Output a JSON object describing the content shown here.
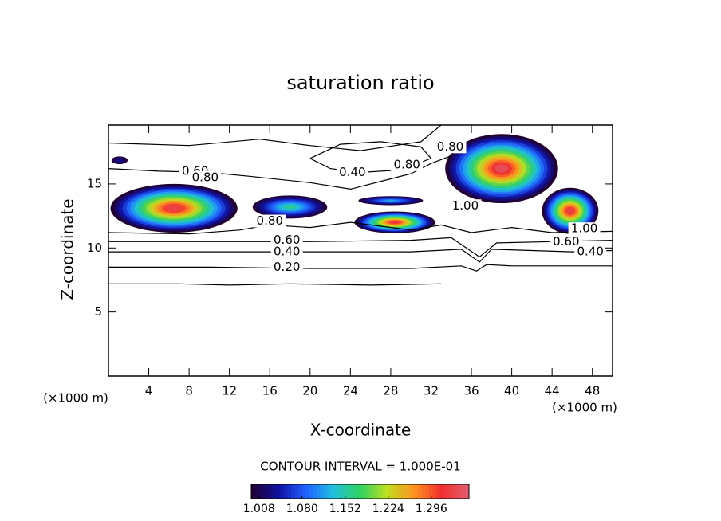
{
  "chart_data": {
    "type": "contour",
    "title": "saturation ratio",
    "xlabel": "X-coordinate",
    "ylabel": "Z-coordinate",
    "x_unit": "(×1000 m)",
    "y_unit": "(×1000 m)",
    "xlim": [
      0,
      50
    ],
    "ylim": [
      0,
      19.6
    ],
    "xticks": [
      4,
      8,
      12,
      16,
      20,
      24,
      28,
      32,
      36,
      40,
      44,
      48
    ],
    "yticks": [
      5,
      10,
      15
    ],
    "line_color": "#000000",
    "contours": [
      {
        "x": [
          0,
          10,
          20,
          30,
          35,
          36.5,
          37.5,
          40,
          45,
          50
        ],
        "y": [
          8.5,
          8.5,
          8.4,
          8.4,
          8.6,
          8.2,
          8.7,
          8.6,
          8.6,
          8.6
        ]
      },
      {
        "x": [
          0,
          10,
          20,
          30,
          35,
          36.8,
          38,
          42,
          46,
          50
        ],
        "y": [
          9.7,
          9.7,
          9.7,
          9.7,
          9.9,
          8.9,
          9.9,
          9.8,
          9.7,
          9.8
        ]
      },
      {
        "x": [
          0,
          10,
          20,
          30,
          34,
          36.8,
          38.5,
          44,
          50
        ],
        "y": [
          10.5,
          10.5,
          10.5,
          10.6,
          10.8,
          9.3,
          10.4,
          10.5,
          10.6
        ]
      },
      {
        "x": [
          0,
          8,
          13,
          16,
          20,
          24,
          30,
          33,
          36,
          40,
          44,
          50
        ],
        "y": [
          11.2,
          11.1,
          11.4,
          11.8,
          11.6,
          12.0,
          11.4,
          11.8,
          11.2,
          11.6,
          11.2,
          11.3
        ]
      },
      {
        "x": [
          0,
          5,
          10,
          14,
          20,
          24,
          28,
          30,
          32,
          34
        ],
        "y": [
          16.2,
          16.0,
          15.9,
          15.6,
          15.1,
          14.6,
          15.4,
          15.8,
          16.6,
          17.2
        ]
      },
      {
        "x": [
          20,
          22,
          25,
          29,
          32,
          31,
          27,
          23,
          20
        ],
        "y": [
          17.0,
          16.2,
          15.9,
          16.1,
          17.0,
          17.9,
          18.3,
          18.1,
          17.0
        ]
      },
      {
        "x": [
          0,
          8,
          15,
          20,
          25,
          31,
          33
        ],
        "y": [
          18.2,
          18.0,
          18.5,
          18.0,
          17.6,
          18.3,
          19.6
        ]
      },
      {
        "x": [
          0,
          7,
          12,
          18,
          26,
          33
        ],
        "y": [
          7.2,
          7.2,
          7.1,
          7.2,
          7.1,
          7.2
        ]
      }
    ],
    "contour_labels": [
      {
        "text": "0.60",
        "x": 8.6,
        "y": 16.0
      },
      {
        "text": "0.80",
        "x": 9.6,
        "y": 15.5
      },
      {
        "text": "0.40",
        "x": 24.2,
        "y": 15.9
      },
      {
        "text": "0.80",
        "x": 29.6,
        "y": 16.5
      },
      {
        "text": "0.80",
        "x": 33.9,
        "y": 17.9
      },
      {
        "text": "0.80",
        "x": 16.0,
        "y": 12.1
      },
      {
        "text": "0.60",
        "x": 17.7,
        "y": 10.6
      },
      {
        "text": "0.40",
        "x": 17.7,
        "y": 9.7
      },
      {
        "text": "0.20",
        "x": 17.7,
        "y": 8.5
      },
      {
        "text": "1.00",
        "x": 35.4,
        "y": 13.3
      },
      {
        "text": "1.00",
        "x": 47.2,
        "y": 11.5
      },
      {
        "text": "0.60",
        "x": 45.4,
        "y": 10.5
      },
      {
        "text": "0.40",
        "x": 47.8,
        "y": 9.7
      }
    ],
    "regions": [
      {
        "x": 6.5,
        "y": 13.1,
        "rx": 6.3,
        "ry": 1.9,
        "peak": 1.33
      },
      {
        "x": 18.0,
        "y": 13.2,
        "rx": 3.7,
        "ry": 0.9,
        "peak": 1.16
      },
      {
        "x": 28.4,
        "y": 12.0,
        "rx": 4.0,
        "ry": 0.85,
        "peak": 1.32
      },
      {
        "x": 28.0,
        "y": 13.7,
        "rx": 3.2,
        "ry": 0.35,
        "peak": 1.12
      },
      {
        "x": 39.0,
        "y": 16.2,
        "rx": 5.6,
        "ry": 2.7,
        "peak": 1.34
      },
      {
        "x": 45.8,
        "y": 12.9,
        "rx": 2.8,
        "ry": 1.8,
        "peak": 1.33
      },
      {
        "x": 1.1,
        "y": 16.85,
        "rx": 0.8,
        "ry": 0.3,
        "peak": 1.04
      }
    ],
    "contour_interval": "CONTOUR INTERVAL = 1.000E-01",
    "clim": [
      0.995,
      1.359
    ],
    "cticks": [
      1.008,
      {
        "value": 1.08,
        "label": "1.080"
      },
      1.152,
      1.224,
      1.296
    ],
    "colormap": [
      "#200030",
      "#1010a0",
      "#2060ff",
      "#20c0e0",
      "#30d060",
      "#c0e020",
      "#ff9020",
      "#f03030",
      "#e06070"
    ]
  }
}
